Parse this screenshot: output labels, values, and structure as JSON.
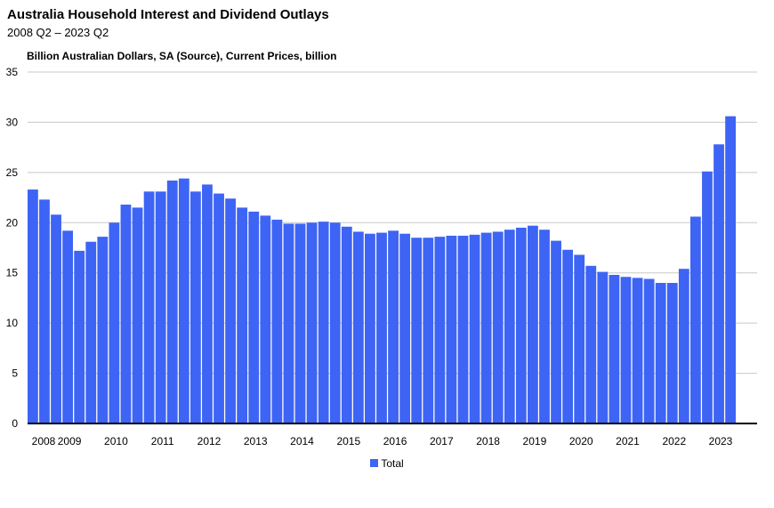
{
  "chart_data": {
    "type": "bar",
    "title": "Australia Household Interest and Dividend Outlays",
    "subtitle": "2008 Q2 – 2023 Q2",
    "ylabel": "Billion Australian Dollars, SA (Source), Current Prices, billion",
    "xlabel": "",
    "ylim": [
      0,
      35
    ],
    "yticks": [
      0,
      5,
      10,
      15,
      20,
      25,
      30,
      35
    ],
    "grid": true,
    "legend_position": "bottom",
    "year_labels": [
      "2008",
      "2009",
      "2010",
      "2011",
      "2012",
      "2013",
      "2014",
      "2015",
      "2016",
      "2017",
      "2018",
      "2019",
      "2020",
      "2021",
      "2022",
      "2023"
    ],
    "categories": [
      "2008 Q2",
      "2008 Q3",
      "2008 Q4",
      "2009 Q1",
      "2009 Q2",
      "2009 Q3",
      "2009 Q4",
      "2010 Q1",
      "2010 Q2",
      "2010 Q3",
      "2010 Q4",
      "2011 Q1",
      "2011 Q2",
      "2011 Q3",
      "2011 Q4",
      "2012 Q1",
      "2012 Q2",
      "2012 Q3",
      "2012 Q4",
      "2013 Q1",
      "2013 Q2",
      "2013 Q3",
      "2013 Q4",
      "2014 Q1",
      "2014 Q2",
      "2014 Q3",
      "2014 Q4",
      "2015 Q1",
      "2015 Q2",
      "2015 Q3",
      "2015 Q4",
      "2016 Q1",
      "2016 Q2",
      "2016 Q3",
      "2016 Q4",
      "2017 Q1",
      "2017 Q2",
      "2017 Q3",
      "2017 Q4",
      "2018 Q1",
      "2018 Q2",
      "2018 Q3",
      "2018 Q4",
      "2019 Q1",
      "2019 Q2",
      "2019 Q3",
      "2019 Q4",
      "2020 Q1",
      "2020 Q2",
      "2020 Q3",
      "2020 Q4",
      "2021 Q1",
      "2021 Q2",
      "2021 Q3",
      "2021 Q4",
      "2022 Q1",
      "2022 Q2",
      "2022 Q3",
      "2022 Q4",
      "2023 Q1",
      "2023 Q2"
    ],
    "series": [
      {
        "name": "Total",
        "color": "#3d64f4",
        "values": [
          23.3,
          22.3,
          20.8,
          19.2,
          17.2,
          18.1,
          18.6,
          20.0,
          21.8,
          21.5,
          23.1,
          23.1,
          24.2,
          24.4,
          23.1,
          23.8,
          22.9,
          22.4,
          21.5,
          21.1,
          20.7,
          20.3,
          19.9,
          19.9,
          20.0,
          20.1,
          20.0,
          19.6,
          19.1,
          18.9,
          19.0,
          19.2,
          18.9,
          18.5,
          18.5,
          18.6,
          18.7,
          18.7,
          18.8,
          19.0,
          19.1,
          19.3,
          19.5,
          19.7,
          19.3,
          18.2,
          17.3,
          16.8,
          15.7,
          15.1,
          14.8,
          14.6,
          14.5,
          14.4,
          14.0,
          14.0,
          15.4,
          20.6,
          25.1,
          27.8,
          30.6
        ]
      }
    ]
  }
}
